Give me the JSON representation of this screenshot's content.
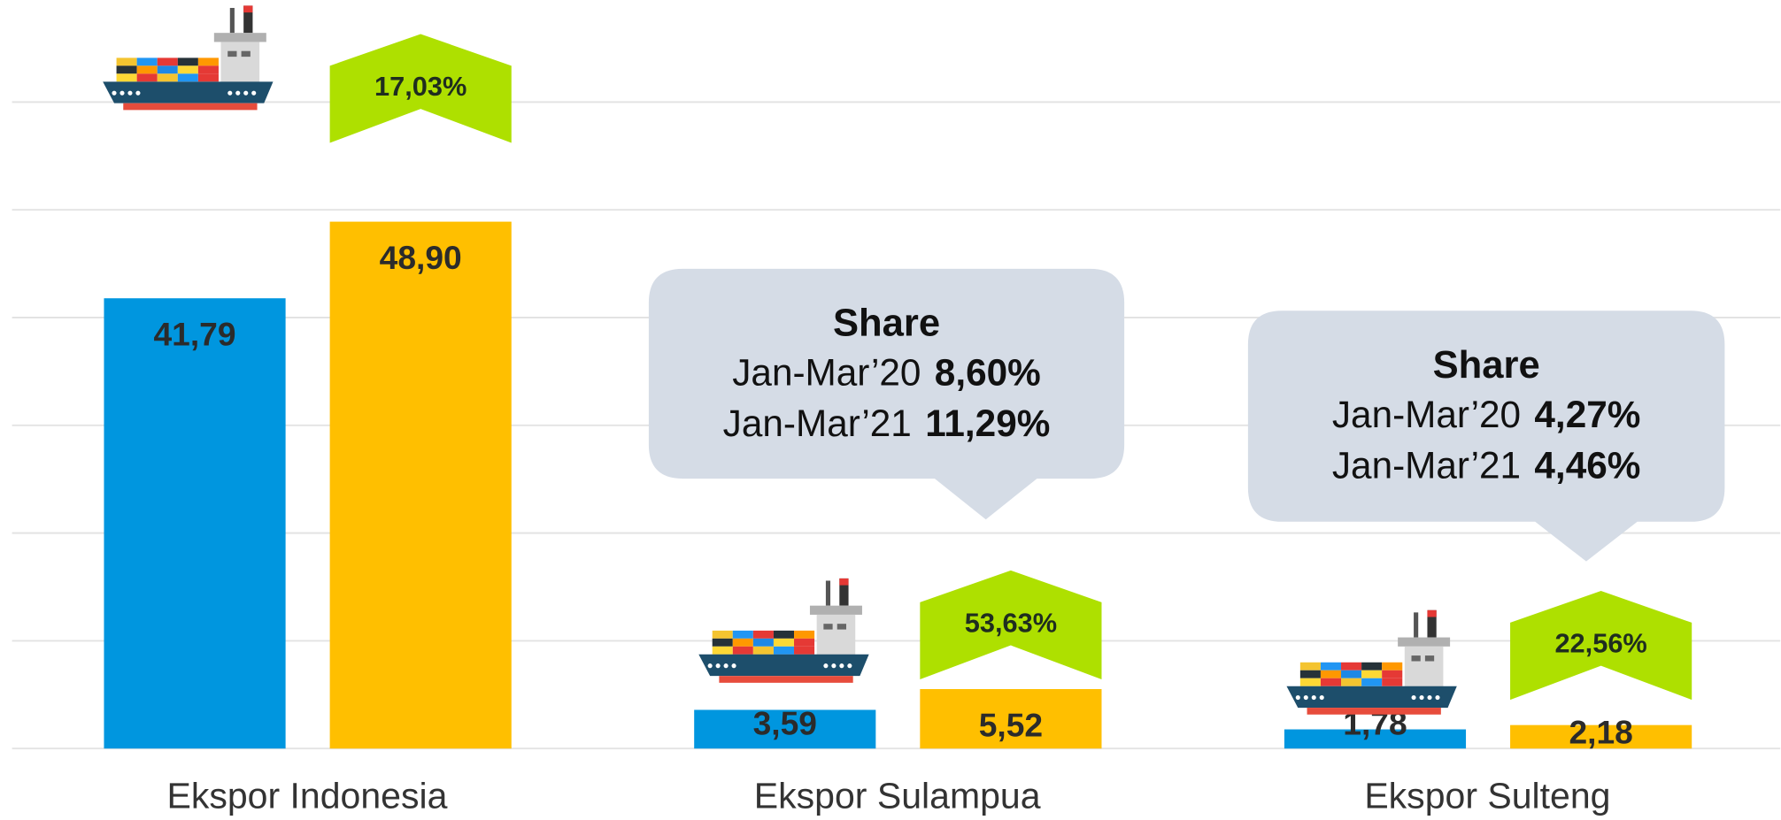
{
  "chart_data": {
    "type": "bar",
    "categories": [
      "Ekspor Indonesia",
      "Ekspor Sulampua",
      "Ekspor Sulteng"
    ],
    "series": [
      {
        "color": "#0096df",
        "values": [
          41.79,
          3.59,
          1.78
        ],
        "value_labels": [
          "41,79",
          "3,59",
          "1,78"
        ]
      },
      {
        "color": "#ffbf00",
        "values": [
          48.9,
          5.52,
          2.18
        ],
        "value_labels": [
          "48,90",
          "5,52",
          "2,18"
        ]
      }
    ],
    "ylim": [
      0,
      60
    ],
    "yticks": [
      0,
      10,
      20,
      30,
      40,
      50,
      60
    ],
    "grid": true,
    "growth_labels": [
      "17,03%",
      "53,63%",
      "22,56%"
    ],
    "growth_color": "#aee000",
    "callouts": [
      {
        "title": "Share",
        "rows": [
          {
            "period": "Jan-Mar’20",
            "value": "8,60%"
          },
          {
            "period": "Jan-Mar’21",
            "value": "11,29%"
          }
        ]
      },
      {
        "title": "Share",
        "rows": [
          {
            "period": "Jan-Mar’20",
            "value": "4,27%"
          },
          {
            "period": "Jan-Mar’21",
            "value": "4,46%"
          }
        ]
      }
    ]
  }
}
